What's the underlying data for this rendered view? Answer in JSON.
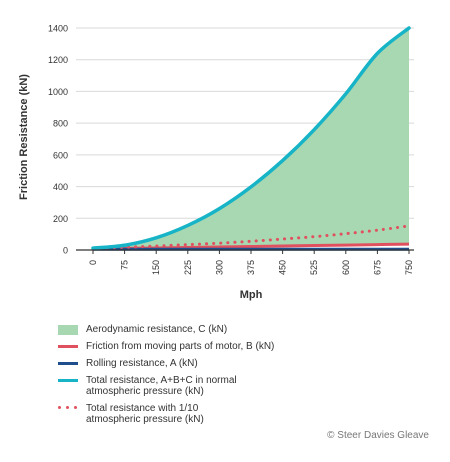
{
  "chart_data": {
    "type": "area",
    "ylabel": "Friction Resistance (kN)",
    "xlabel": "Mph",
    "xlim": [
      0,
      750
    ],
    "ylim": [
      0,
      1400
    ],
    "x_ticks": [
      "0",
      "75",
      "150",
      "225",
      "300",
      "375",
      "450",
      "525",
      "600",
      "675",
      "750"
    ],
    "y_ticks": [
      "0",
      "200",
      "400",
      "600",
      "800",
      "1000",
      "1200",
      "1400"
    ],
    "grid": "horizontal",
    "legend_position": "bottom",
    "x": [
      0,
      75,
      150,
      225,
      300,
      375,
      450,
      525,
      600,
      675,
      750
    ],
    "series": [
      {
        "key": "aero",
        "name": "Aerodynamic resistance, C (kN)",
        "style": "area",
        "color": "#a8d8b1",
        "values": [
          0,
          15,
          59,
          134,
          237,
          371,
          534,
          726,
          949,
          1201,
          1482
        ]
      },
      {
        "key": "motor",
        "name": "Friction from moving parts of motor, B (kN)",
        "style": "line",
        "color": "#e0505f",
        "values": [
          7,
          10,
          13,
          16,
          19,
          22,
          25,
          28,
          31,
          34,
          37
        ]
      },
      {
        "key": "rolling",
        "name": "Rolling resistance, A (kN)",
        "style": "line",
        "color": "#1f4e8c",
        "values": [
          5,
          5,
          5,
          5,
          5,
          5,
          5,
          5,
          5,
          5,
          5
        ]
      },
      {
        "key": "total",
        "name": "Total resistance, A+B+C in normal\natmospheric pressure (kN)",
        "style": "line",
        "color": "#17b3c6",
        "values": [
          12,
          30,
          77,
          155,
          261,
          398,
          564,
          759,
          985,
          1240,
          1524
        ]
      },
      {
        "key": "total_low",
        "name": "Total resistance with 1/10\natmospheric pressure (kN)",
        "style": "dotted",
        "color": "#e0505f",
        "values": [
          12,
          17,
          25,
          34,
          43,
          55,
          69,
          84,
          103,
          125,
          152
        ]
      }
    ]
  },
  "legend_order": [
    "aero",
    "motor",
    "rolling",
    "total",
    "total_low"
  ],
  "copyright": "© Steer Davies Gleave",
  "colors": {
    "axis": "#333333",
    "grid": "#d9d9d9",
    "text": "#333333"
  }
}
